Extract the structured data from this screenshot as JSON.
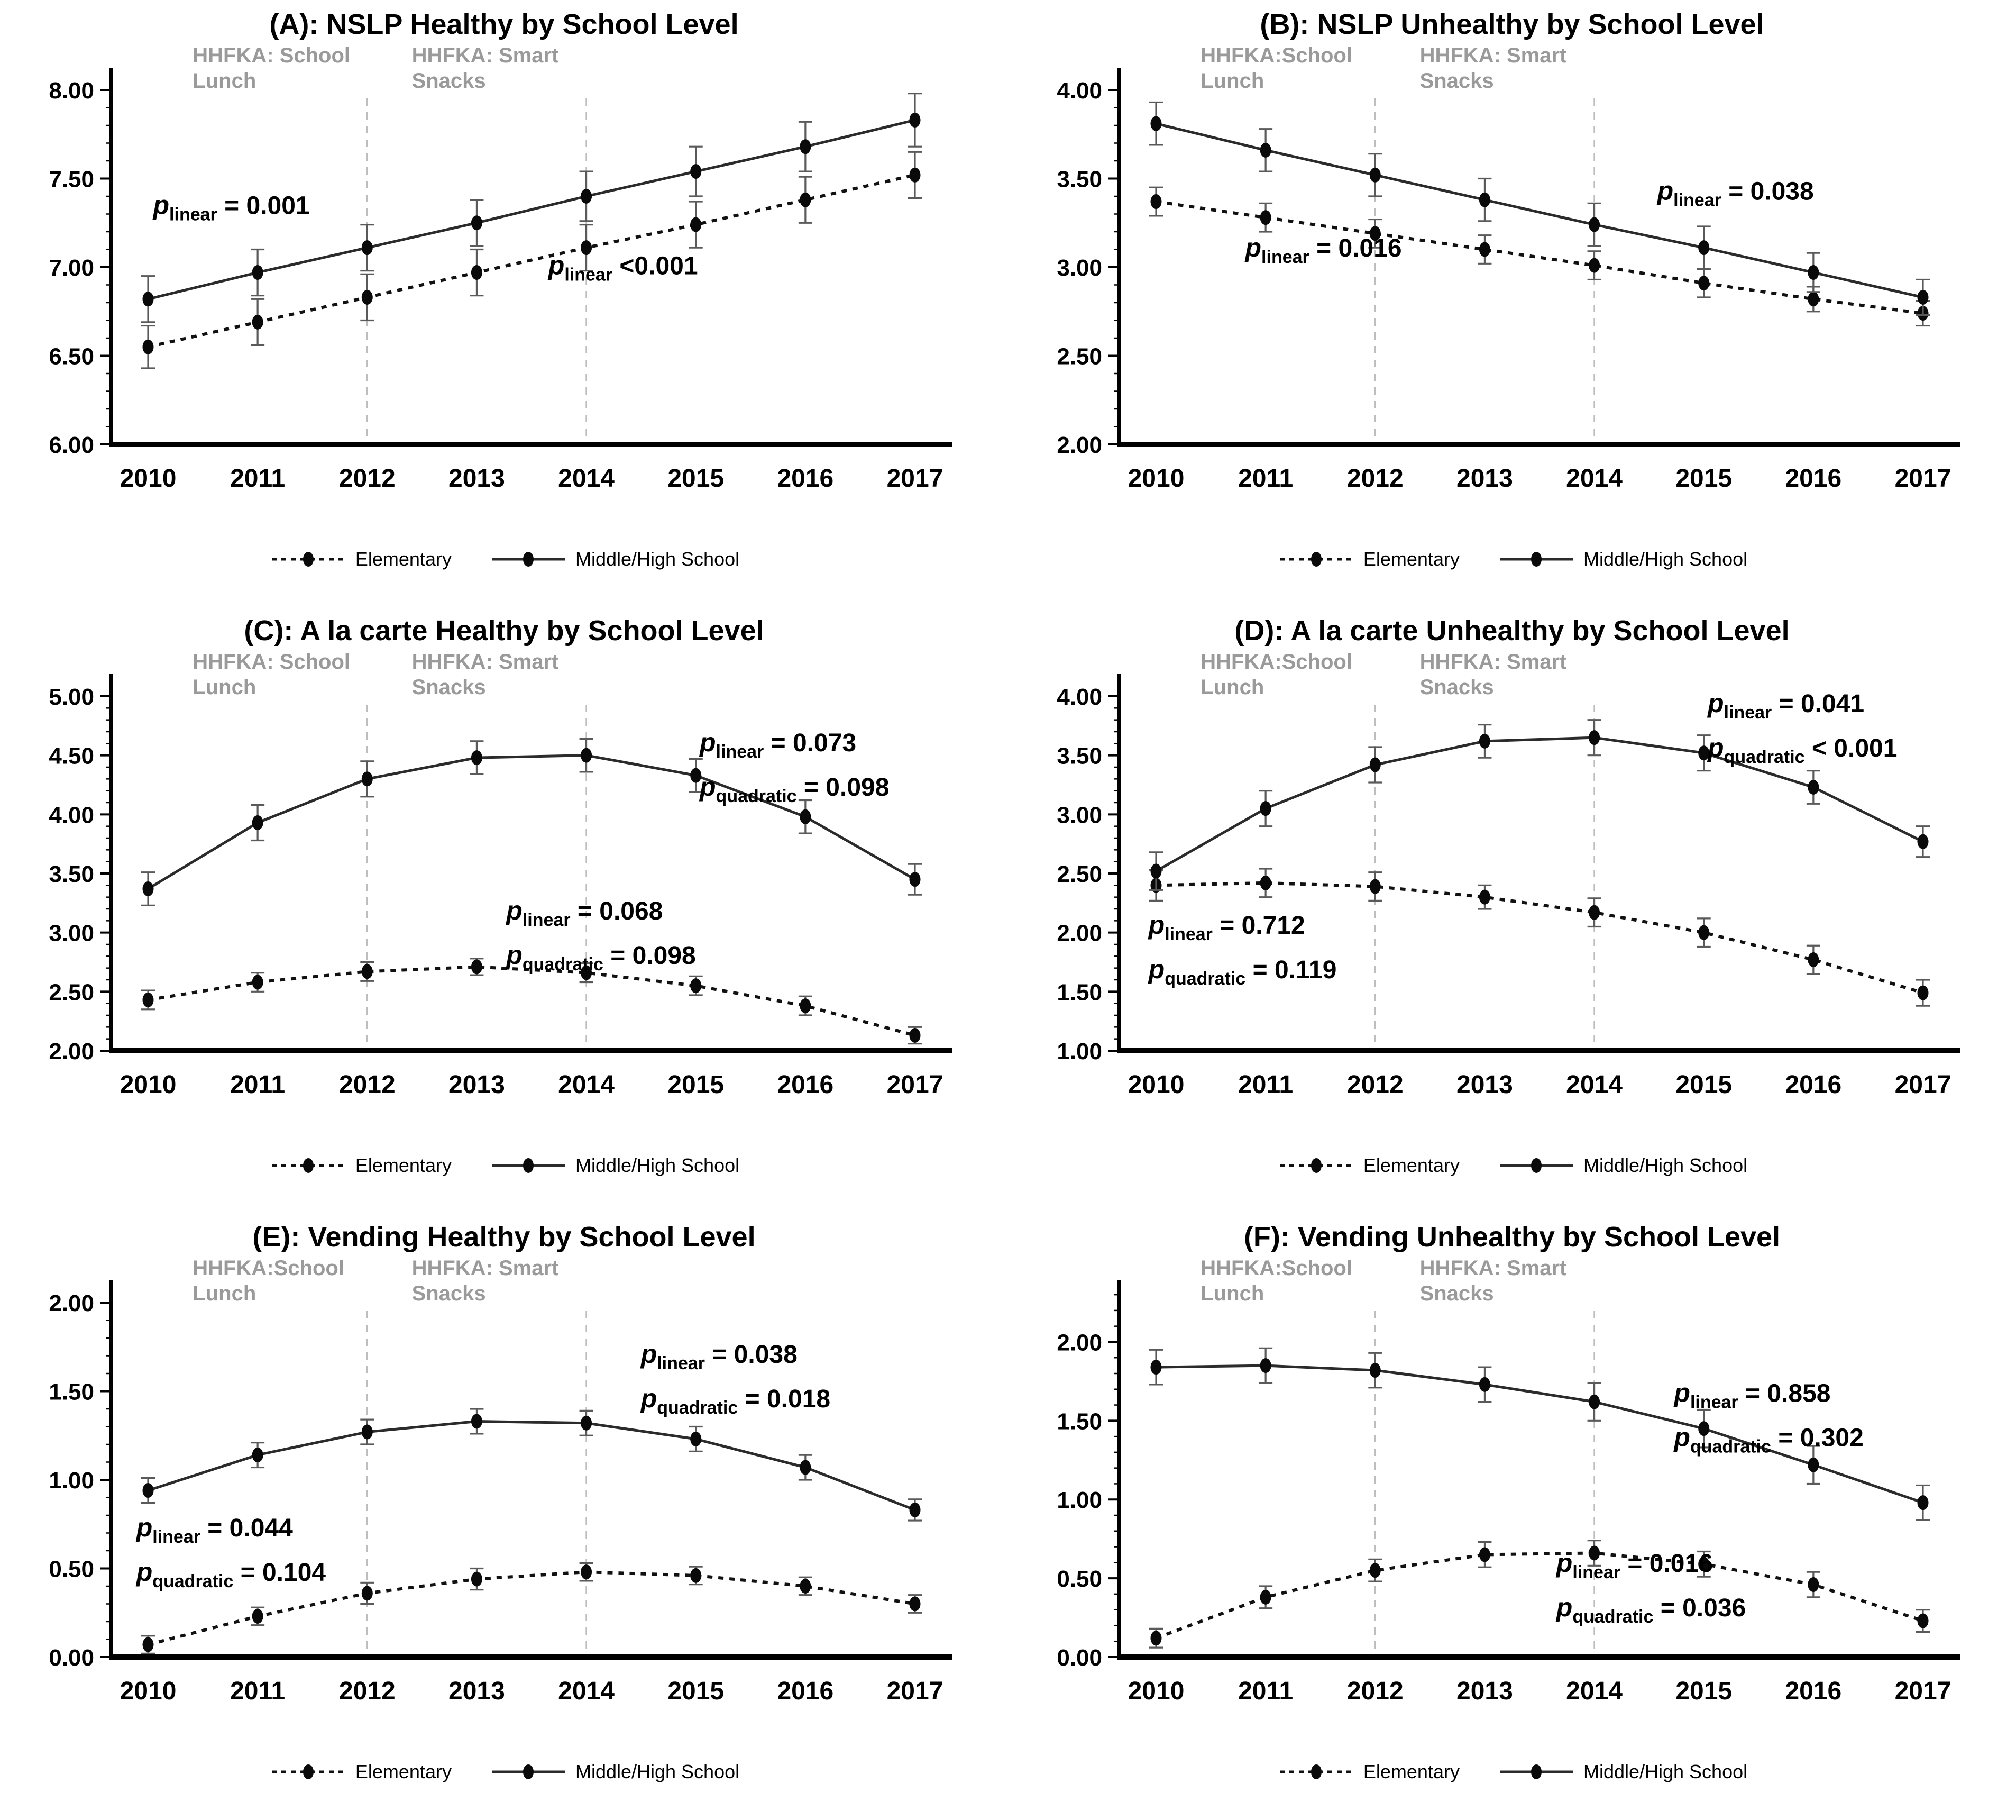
{
  "p_symbol": "p",
  "years": [
    "2010",
    "2011",
    "2012",
    "2013",
    "2014",
    "2015",
    "2016",
    "2017"
  ],
  "legend": {
    "items": [
      {
        "label": "Elementary",
        "style": "dashed"
      },
      {
        "label": "Middle/High School",
        "style": "solid"
      }
    ]
  },
  "colors": {
    "line_solid": "#2b2b2b",
    "line_dashed": "#111111",
    "marker": "#0a0a0a",
    "errbar": "#5a5a5a",
    "vline": "#bdbdbd",
    "hhfka_label": "#9a9a9a",
    "axis": "#000000",
    "text": "#000000"
  },
  "chart_data": [
    {
      "id": "A",
      "type": "line",
      "title": "(A): NSLP Healthy by School Level",
      "xlabel": "",
      "ylabel": "",
      "ylim": [
        6.0,
        8.0
      ],
      "ymax_draw": 8.0,
      "grid": false,
      "legend_position": "bottom",
      "yticks": [
        {
          "v": 6.0,
          "label": "6.00"
        },
        {
          "v": 6.5,
          "label": "6.50"
        },
        {
          "v": 7.0,
          "label": "7.00"
        },
        {
          "v": 7.5,
          "label": "7.50"
        },
        {
          "v": 8.0,
          "label": "8.00"
        }
      ],
      "series": [
        {
          "name": "Elementary",
          "style": "dashed",
          "values": [
            6.55,
            6.69,
            6.83,
            6.97,
            7.11,
            7.24,
            7.38,
            7.52
          ],
          "err": [
            0.12,
            0.13,
            0.13,
            0.13,
            0.13,
            0.13,
            0.13,
            0.13
          ]
        },
        {
          "name": "Middle/High School",
          "style": "solid",
          "values": [
            6.82,
            6.97,
            7.11,
            7.25,
            7.4,
            7.54,
            7.68,
            7.83
          ],
          "err": [
            0.13,
            0.13,
            0.13,
            0.13,
            0.14,
            0.14,
            0.14,
            0.15
          ]
        }
      ],
      "vlines": [
        {
          "year": "2012",
          "line1": "HHFKA:  School",
          "line2": "Lunch"
        },
        {
          "year": "2014",
          "line1": "HHFKA:  Smart",
          "line2": "Snacks"
        }
      ],
      "annotations": [
        {
          "fx": 0.05,
          "fy": 0.35,
          "lines": [
            {
              "sub": "linear",
              "val": "= 0.001"
            }
          ]
        },
        {
          "fx": 0.52,
          "fy": 0.52,
          "lines": [
            {
              "sub": "linear",
              "val": "<0.001"
            }
          ]
        }
      ]
    },
    {
      "id": "B",
      "type": "line",
      "title": "(B): NSLP Unhealthy by School Level",
      "xlabel": "",
      "ylabel": "",
      "ylim": [
        2.0,
        4.0
      ],
      "ymax_draw": 4.0,
      "grid": false,
      "legend_position": "bottom",
      "yticks": [
        {
          "v": 2.0,
          "label": "2.00"
        },
        {
          "v": 2.5,
          "label": "2.50"
        },
        {
          "v": 3.0,
          "label": "3.00"
        },
        {
          "v": 3.5,
          "label": "3.50"
        },
        {
          "v": 4.0,
          "label": "4.00"
        }
      ],
      "series": [
        {
          "name": "Elementary",
          "style": "dashed",
          "values": [
            3.37,
            3.28,
            3.19,
            3.1,
            3.01,
            2.91,
            2.82,
            2.74
          ],
          "err": [
            0.08,
            0.08,
            0.08,
            0.08,
            0.08,
            0.08,
            0.07,
            0.07
          ]
        },
        {
          "name": "Middle/High School",
          "style": "solid",
          "values": [
            3.81,
            3.66,
            3.52,
            3.38,
            3.24,
            3.11,
            2.97,
            2.83
          ],
          "err": [
            0.12,
            0.12,
            0.12,
            0.12,
            0.12,
            0.12,
            0.11,
            0.1
          ]
        }
      ],
      "vlines": [
        {
          "year": "2012",
          "line1": "HHFKA:School",
          "line2": "Lunch"
        },
        {
          "year": "2014",
          "line1": "HHFKA:  Smart",
          "line2": "Snacks"
        }
      ],
      "annotations": [
        {
          "fx": 0.64,
          "fy": 0.31,
          "lines": [
            {
              "sub": "linear",
              "val": "= 0.038"
            }
          ]
        },
        {
          "fx": 0.15,
          "fy": 0.47,
          "lines": [
            {
              "sub": "linear",
              "val": "= 0.016"
            }
          ]
        }
      ]
    },
    {
      "id": "C",
      "type": "line",
      "title": "(C): A la carte Healthy by School Level",
      "xlabel": "",
      "ylabel": "",
      "ylim": [
        2.0,
        5.0
      ],
      "ymax_draw": 5.0,
      "grid": false,
      "legend_position": "bottom",
      "yticks": [
        {
          "v": 2.0,
          "label": "2.00"
        },
        {
          "v": 2.5,
          "label": "2.50"
        },
        {
          "v": 3.0,
          "label": "3.00"
        },
        {
          "v": 3.5,
          "label": "3.50"
        },
        {
          "v": 4.0,
          "label": "4.00"
        },
        {
          "v": 4.5,
          "label": "4.50"
        },
        {
          "v": 5.0,
          "label": "5.00"
        }
      ],
      "series": [
        {
          "name": "Elementary",
          "style": "dashed",
          "values": [
            2.43,
            2.58,
            2.67,
            2.71,
            2.66,
            2.55,
            2.38,
            2.13
          ],
          "err": [
            0.08,
            0.08,
            0.08,
            0.07,
            0.08,
            0.08,
            0.08,
            0.07
          ]
        },
        {
          "name": "Middle/High School",
          "style": "solid",
          "values": [
            3.37,
            3.93,
            4.3,
            4.48,
            4.5,
            4.33,
            3.98,
            3.45
          ],
          "err": [
            0.14,
            0.15,
            0.15,
            0.14,
            0.14,
            0.14,
            0.14,
            0.13
          ]
        }
      ],
      "vlines": [
        {
          "year": "2012",
          "line1": "HHFKA:  School",
          "line2": "Lunch"
        },
        {
          "year": "2014",
          "line1": "HHFKA:  Smart",
          "line2": "Snacks"
        }
      ],
      "annotations": [
        {
          "fx": 0.7,
          "fy": 0.155,
          "lines": [
            {
              "sub": "linear",
              "val": "= 0.073"
            },
            {
              "sub": "quadratic",
              "val": "= 0.098"
            }
          ]
        },
        {
          "fx": 0.47,
          "fy": 0.63,
          "lines": [
            {
              "sub": "linear",
              "val": "= 0.068"
            },
            {
              "sub": "quadratic",
              "val": "= 0.098"
            }
          ]
        }
      ]
    },
    {
      "id": "D",
      "type": "line",
      "title": "(D): A la carte Unhealthy by School Level",
      "xlabel": "",
      "ylabel": "",
      "ylim": [
        1.0,
        4.0
      ],
      "ymax_draw": 4.0,
      "grid": false,
      "legend_position": "bottom",
      "yticks": [
        {
          "v": 1.0,
          "label": "1.00"
        },
        {
          "v": 1.5,
          "label": "1.50"
        },
        {
          "v": 2.0,
          "label": "2.00"
        },
        {
          "v": 2.5,
          "label": "2.50"
        },
        {
          "v": 3.0,
          "label": "3.00"
        },
        {
          "v": 3.5,
          "label": "3.50"
        },
        {
          "v": 4.0,
          "label": "4.00"
        }
      ],
      "series": [
        {
          "name": "Elementary",
          "style": "dashed",
          "values": [
            2.4,
            2.42,
            2.39,
            2.3,
            2.17,
            2.0,
            1.77,
            1.49
          ],
          "err": [
            0.13,
            0.12,
            0.12,
            0.1,
            0.12,
            0.12,
            0.12,
            0.11
          ]
        },
        {
          "name": "Middle/High School",
          "style": "solid",
          "values": [
            2.52,
            3.05,
            3.42,
            3.62,
            3.65,
            3.52,
            3.23,
            2.77
          ],
          "err": [
            0.16,
            0.15,
            0.15,
            0.14,
            0.15,
            0.15,
            0.14,
            0.13
          ]
        }
      ],
      "vlines": [
        {
          "year": "2012",
          "line1": "HHFKA:School",
          "line2": "Lunch"
        },
        {
          "year": "2014",
          "line1": "HHFKA:  Smart",
          "line2": "Snacks"
        }
      ],
      "annotations": [
        {
          "fx": 0.7,
          "fy": 0.045,
          "lines": [
            {
              "sub": "linear",
              "val": "= 0.041"
            },
            {
              "sub": "quadratic",
              "val": "< 0.001"
            }
          ]
        },
        {
          "fx": 0.035,
          "fy": 0.67,
          "lines": [
            {
              "sub": "linear",
              "val": "= 0.712"
            },
            {
              "sub": "quadratic",
              "val": "= 0.119"
            }
          ]
        }
      ]
    },
    {
      "id": "E",
      "type": "line",
      "title": "(E): Vending Healthy by School Level",
      "xlabel": "",
      "ylabel": "",
      "ylim": [
        0.0,
        2.0
      ],
      "ymax_draw": 2.0,
      "grid": false,
      "legend_position": "bottom",
      "yticks": [
        {
          "v": 0.0,
          "label": "0.00"
        },
        {
          "v": 0.5,
          "label": "0.50"
        },
        {
          "v": 1.0,
          "label": "1.00"
        },
        {
          "v": 1.5,
          "label": "1.50"
        },
        {
          "v": 2.0,
          "label": "2.00"
        }
      ],
      "series": [
        {
          "name": "Elementary",
          "style": "dashed",
          "values": [
            0.07,
            0.23,
            0.36,
            0.44,
            0.48,
            0.46,
            0.4,
            0.3
          ],
          "err": [
            0.05,
            0.05,
            0.06,
            0.06,
            0.05,
            0.05,
            0.05,
            0.05
          ]
        },
        {
          "name": "Middle/High School",
          "style": "solid",
          "values": [
            0.94,
            1.14,
            1.27,
            1.33,
            1.32,
            1.23,
            1.07,
            0.83
          ],
          "err": [
            0.07,
            0.07,
            0.07,
            0.07,
            0.07,
            0.07,
            0.07,
            0.06
          ]
        }
      ],
      "vlines": [
        {
          "year": "2012",
          "line1": "HHFKA:School",
          "line2": "Lunch"
        },
        {
          "year": "2014",
          "line1": "HHFKA:  Smart",
          "line2": "Snacks"
        }
      ],
      "annotations": [
        {
          "fx": 0.63,
          "fy": 0.17,
          "lines": [
            {
              "sub": "linear",
              "val": "= 0.038"
            },
            {
              "sub": "quadratic",
              "val": "= 0.018"
            }
          ]
        },
        {
          "fx": 0.03,
          "fy": 0.66,
          "lines": [
            {
              "sub": "linear",
              "val": "= 0.044"
            },
            {
              "sub": "quadratic",
              "val": "= 0.104"
            }
          ]
        }
      ]
    },
    {
      "id": "F",
      "type": "line",
      "title": "(F): Vending Unhealthy by School Level",
      "xlabel": "",
      "ylabel": "",
      "ylim": [
        0.0,
        2.0
      ],
      "ymax_draw": 2.25,
      "grid": false,
      "legend_position": "bottom",
      "yticks": [
        {
          "v": 0.0,
          "label": "0.00"
        },
        {
          "v": 0.5,
          "label": "0.50"
        },
        {
          "v": 1.0,
          "label": "1.00"
        },
        {
          "v": 1.5,
          "label": "1.50"
        },
        {
          "v": 2.0,
          "label": "2.00"
        }
      ],
      "series": [
        {
          "name": "Elementary",
          "style": "dashed",
          "values": [
            0.12,
            0.38,
            0.55,
            0.65,
            0.66,
            0.59,
            0.46,
            0.23
          ],
          "err": [
            0.06,
            0.07,
            0.07,
            0.08,
            0.08,
            0.08,
            0.08,
            0.07
          ]
        },
        {
          "name": "Middle/High School",
          "style": "solid",
          "values": [
            1.84,
            1.85,
            1.82,
            1.73,
            1.62,
            1.45,
            1.22,
            0.98
          ],
          "err": [
            0.11,
            0.11,
            0.11,
            0.11,
            0.12,
            0.12,
            0.12,
            0.11
          ]
        }
      ],
      "vlines": [
        {
          "year": "2012",
          "line1": "HHFKA:School",
          "line2": "Lunch"
        },
        {
          "year": "2014",
          "line1": "HHFKA:  Smart",
          "line2": "Snacks"
        }
      ],
      "annotations": [
        {
          "fx": 0.66,
          "fy": 0.28,
          "lines": [
            {
              "sub": "linear",
              "val": "= 0.858"
            },
            {
              "sub": "quadratic",
              "val": "= 0.302"
            }
          ]
        },
        {
          "fx": 0.52,
          "fy": 0.76,
          "lines": [
            {
              "sub": "linear",
              "val": "= 0.016"
            },
            {
              "sub": "quadratic",
              "val": "= 0.036"
            }
          ]
        }
      ]
    }
  ]
}
